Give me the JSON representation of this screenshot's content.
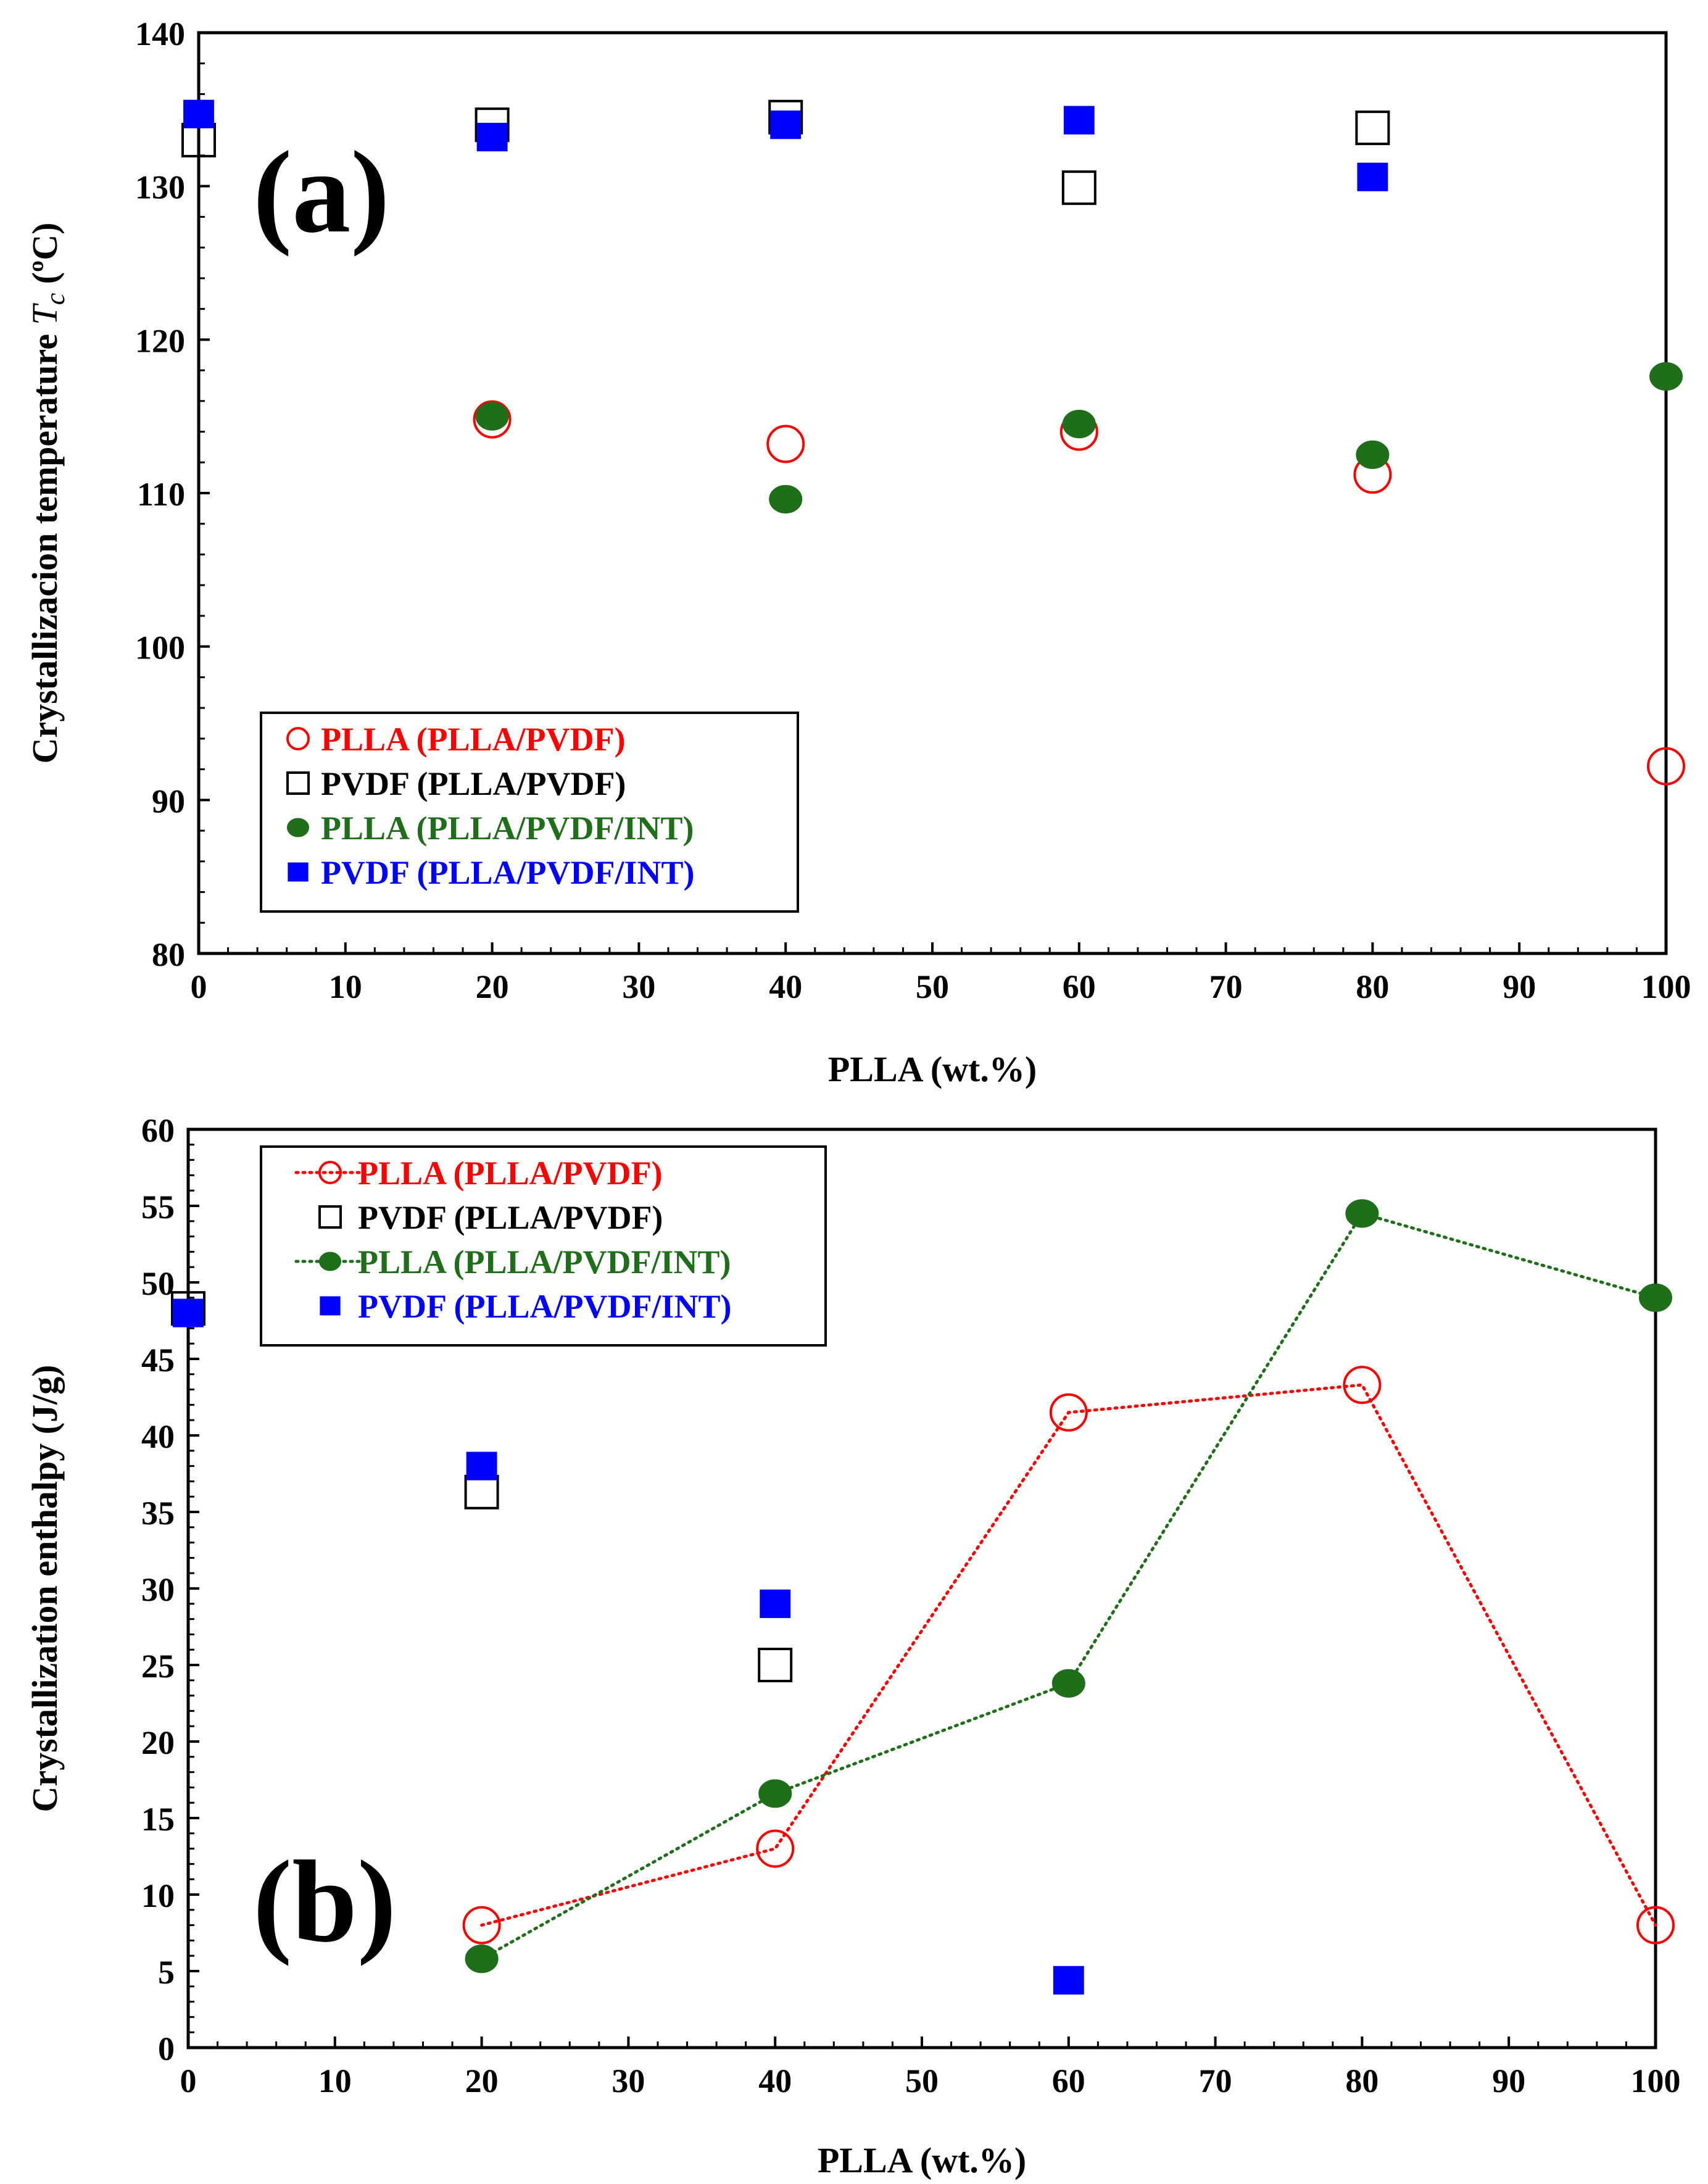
{
  "colors": {
    "red": "#ff0000",
    "black": "#000000",
    "green": "#1f6e1a",
    "blue": "#0000ff"
  },
  "chart_data": [
    {
      "type": "scatter",
      "panel_label": "(a)",
      "xlabel": "PLLA (wt.%)",
      "ylabel": "Crystallizacion temperature ",
      "ylabel_symbol": "T",
      "ylabel_subscript": "c",
      "ylabel_unit": " (ºC)",
      "xlim": [
        0,
        100
      ],
      "ylim": [
        80,
        140
      ],
      "xticks": [
        0,
        10,
        20,
        30,
        40,
        50,
        60,
        70,
        80,
        90,
        100
      ],
      "yticks": [
        80,
        90,
        100,
        110,
        120,
        130,
        140
      ],
      "legend_position": "lower-left",
      "series": [
        {
          "name": "PLLA (PLLA/PVDF)",
          "marker": "circle-open",
          "color": "#ff0000",
          "line": false,
          "x": [
            20,
            40,
            60,
            80,
            100
          ],
          "y": [
            114.8,
            113.2,
            114.0,
            111.2,
            92.2
          ]
        },
        {
          "name": "PVDF (PLLA/PVDF)",
          "marker": "square-open",
          "color": "#000000",
          "line": false,
          "x": [
            0,
            20,
            40,
            60,
            80
          ],
          "y": [
            133.0,
            134.0,
            134.5,
            129.9,
            133.8
          ]
        },
        {
          "name": "PLLA (PLLA/PVDF/INT)",
          "marker": "circle-filled",
          "color": "#1f6e1a",
          "line": false,
          "x": [
            20,
            40,
            60,
            80,
            100
          ],
          "y": [
            115.0,
            109.6,
            114.5,
            112.5,
            117.6
          ]
        },
        {
          "name": "PVDF (PLLA/PVDF/INT)",
          "marker": "square-filled",
          "color": "#0000ff",
          "line": false,
          "x": [
            0,
            20,
            40,
            60,
            80
          ],
          "y": [
            134.7,
            133.2,
            134.0,
            134.3,
            130.6
          ]
        }
      ]
    },
    {
      "type": "line",
      "panel_label": "(b)",
      "xlabel": "PLLA (wt.%)",
      "ylabel": "Crystallization enthalpy (J/g)",
      "xlim": [
        0,
        100
      ],
      "ylim": [
        0,
        60
      ],
      "xticks": [
        0,
        10,
        20,
        30,
        40,
        50,
        60,
        70,
        80,
        90,
        100
      ],
      "yticks": [
        0,
        5,
        10,
        15,
        20,
        25,
        30,
        35,
        40,
        45,
        50,
        55,
        60
      ],
      "legend_position": "top-left",
      "series": [
        {
          "name": "PLLA (PLLA/PVDF)",
          "marker": "circle-open",
          "color": "#ff0000",
          "line": true,
          "x": [
            20,
            40,
            60,
            80,
            100
          ],
          "y": [
            8.0,
            13.0,
            41.5,
            43.3,
            8.0
          ]
        },
        {
          "name": "PVDF (PLLA/PVDF)",
          "marker": "square-open",
          "color": "#000000",
          "line": false,
          "x": [
            0,
            20,
            40
          ],
          "y": [
            48.3,
            36.3,
            25.0
          ]
        },
        {
          "name": "PLLA (PLLA/PVDF/INT)",
          "marker": "circle-filled",
          "color": "#1f6e1a",
          "line": true,
          "x": [
            20,
            40,
            60,
            80,
            100
          ],
          "y": [
            5.8,
            16.6,
            23.8,
            54.5,
            49.0
          ]
        },
        {
          "name": "PVDF (PLLA/PVDF/INT)",
          "marker": "square-filled",
          "color": "#0000ff",
          "line": false,
          "x": [
            0,
            20,
            40,
            60
          ],
          "y": [
            48.0,
            38.0,
            29.0,
            4.4
          ]
        }
      ]
    }
  ]
}
